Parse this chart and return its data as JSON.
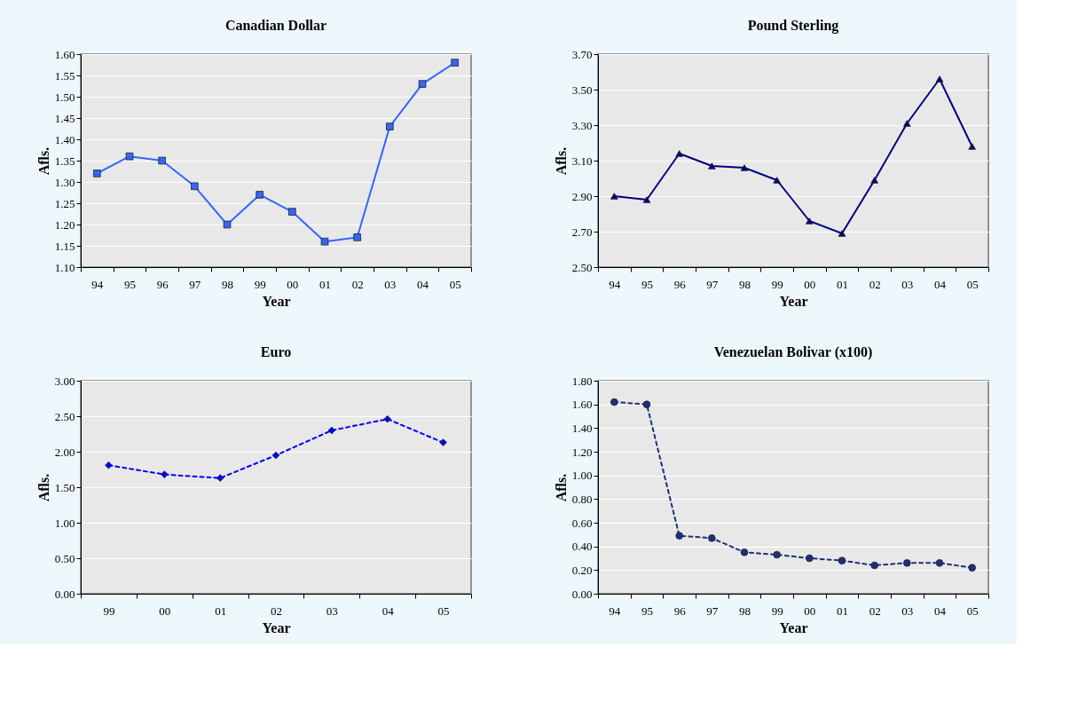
{
  "chart_data": [
    {
      "type": "line",
      "title": "Canadian Dollar",
      "xlabel": "Year",
      "ylabel": "Afls.",
      "categories": [
        "94",
        "95",
        "96",
        "97",
        "98",
        "99",
        "00",
        "01",
        "02",
        "03",
        "04",
        "05"
      ],
      "series": [
        {
          "color": "#3366ff",
          "values": [
            1.32,
            1.36,
            1.35,
            1.29,
            1.2,
            1.27,
            1.23,
            1.16,
            1.17,
            1.43,
            1.53,
            1.58
          ]
        }
      ],
      "ylim": [
        1.1,
        1.6
      ],
      "yticks": [
        {
          "value": 1.1,
          "label": "1.10"
        },
        {
          "value": 1.15,
          "label": "1.15"
        },
        {
          "value": 1.2,
          "label": "1.20"
        },
        {
          "value": 1.25,
          "label": "1.25"
        },
        {
          "value": 1.3,
          "label": "1.30"
        },
        {
          "value": 1.35,
          "label": "1.35"
        },
        {
          "value": 1.4,
          "label": "1.40"
        },
        {
          "value": 1.45,
          "label": "1.45"
        },
        {
          "value": 1.5,
          "label": "1.50"
        },
        {
          "value": 1.55,
          "label": "1.55"
        },
        {
          "value": 1.6,
          "label": "1.60"
        }
      ],
      "grid": "y",
      "marker": "square",
      "line_style": "solid"
    },
    {
      "type": "line",
      "title": "Pound Sterling",
      "xlabel": "Year",
      "ylabel": "Afls.",
      "categories": [
        "94",
        "95",
        "96",
        "97",
        "98",
        "99",
        "00",
        "01",
        "02",
        "03",
        "04",
        "05"
      ],
      "series": [
        {
          "color": "#000080",
          "values": [
            2.9,
            2.88,
            3.14,
            3.07,
            3.06,
            2.99,
            2.76,
            2.69,
            2.99,
            3.31,
            3.56,
            3.18
          ]
        }
      ],
      "ylim": [
        2.5,
        3.7
      ],
      "yticks": [
        {
          "value": 2.5,
          "label": "2.50"
        },
        {
          "value": 2.7,
          "label": "2.70"
        },
        {
          "value": 2.9,
          "label": "2.90"
        },
        {
          "value": 3.1,
          "label": "3.10"
        },
        {
          "value": 3.3,
          "label": "3.30"
        },
        {
          "value": 3.5,
          "label": "3.50"
        },
        {
          "value": 3.7,
          "label": "3.70"
        }
      ],
      "grid": "y",
      "marker": "triangle",
      "line_style": "solid"
    },
    {
      "type": "line",
      "title": "Euro",
      "xlabel": "Year",
      "ylabel": "Afls.",
      "categories": [
        "99",
        "00",
        "01",
        "02",
        "03",
        "04",
        "05"
      ],
      "series": [
        {
          "color": "#0000ff",
          "values": [
            1.81,
            1.68,
            1.63,
            1.95,
            2.3,
            2.46,
            2.13
          ]
        }
      ],
      "ylim": [
        0,
        3.0
      ],
      "yticks": [
        {
          "value": 0,
          "label": "0.00"
        },
        {
          "value": 0.5,
          "label": "0.50"
        },
        {
          "value": 1,
          "label": "1.00"
        },
        {
          "value": 1.5,
          "label": "1.50"
        },
        {
          "value": 2,
          "label": "2.00"
        },
        {
          "value": 2.5,
          "label": "2.50"
        },
        {
          "value": 3,
          "label": "3.00"
        }
      ],
      "grid": "y",
      "marker": "diamond",
      "line_style": "dashed"
    },
    {
      "type": "line",
      "title": "Venezuelan Bolivar (x100)",
      "xlabel": "Year",
      "ylabel": "Afls.",
      "categories": [
        "94",
        "95",
        "96",
        "97",
        "98",
        "99",
        "00",
        "01",
        "02",
        "03",
        "04",
        "05"
      ],
      "series": [
        {
          "color": "#1f2f80",
          "values": [
            1.62,
            1.6,
            0.49,
            0.47,
            0.35,
            0.33,
            0.3,
            0.28,
            0.24,
            0.26,
            0.26,
            0.22
          ]
        }
      ],
      "ylim": [
        0,
        1.8
      ],
      "yticks": [
        {
          "value": 0,
          "label": "0.00"
        },
        {
          "value": 0.2,
          "label": "0.20"
        },
        {
          "value": 0.4,
          "label": "0.40"
        },
        {
          "value": 0.6,
          "label": "0.60"
        },
        {
          "value": 0.8,
          "label": "0.80"
        },
        {
          "value": 1,
          "label": "1.00"
        },
        {
          "value": 1.2,
          "label": "1.20"
        },
        {
          "value": 1.4,
          "label": "1.40"
        },
        {
          "value": 1.6,
          "label": "1.60"
        },
        {
          "value": 1.8,
          "label": "1.80"
        }
      ],
      "grid": "y",
      "marker": "circle",
      "line_style": "dashed"
    }
  ]
}
